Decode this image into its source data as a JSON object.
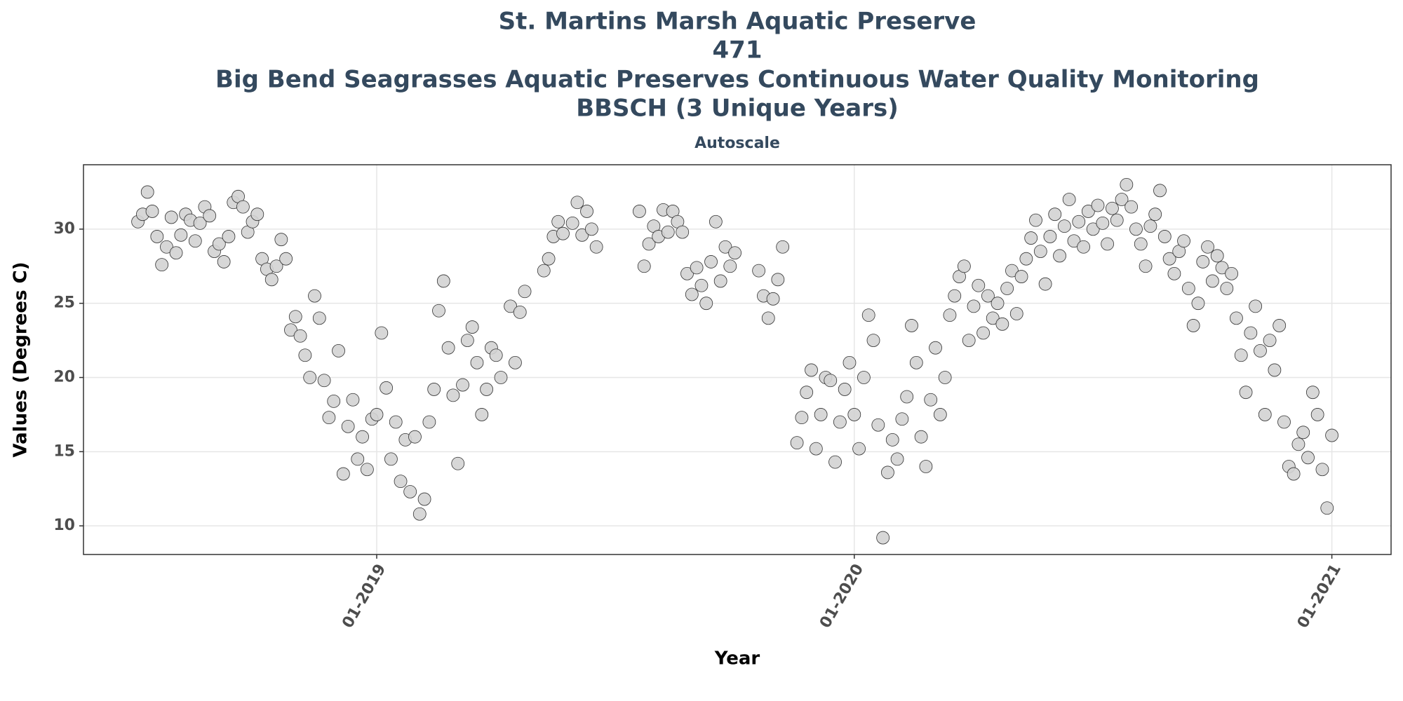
{
  "chart_data": {
    "type": "scatter",
    "title": [
      "St. Martins Marsh Aquatic Preserve",
      "471",
      "Big Bend Seagrasses Aquatic Preserves Continuous Water Quality Monitoring",
      "BBSCH (3 Unique Years)"
    ],
    "subtitle": "Autoscale",
    "xlabel": "Year",
    "ylabel": "Values (Degrees C)",
    "xlim": [
      2018.386,
      2021.124
    ],
    "ylim": [
      8.07,
      34.34
    ],
    "xticks": [
      {
        "value": 2019,
        "label": "01-2019"
      },
      {
        "value": 2020,
        "label": "01-2020"
      },
      {
        "value": 2021,
        "label": "01-2021"
      }
    ],
    "yticks": [
      10,
      15,
      20,
      25,
      30
    ],
    "grid": true,
    "series": [
      {
        "color": "#d3d3d3",
        "x": [
          2018.5,
          2018.51,
          2018.52,
          2018.53,
          2018.54,
          2018.55,
          2018.56,
          2018.57,
          2018.58,
          2018.59,
          2018.6,
          2018.61,
          2018.62,
          2018.63,
          2018.64,
          2018.65,
          2018.66,
          2018.67,
          2018.68,
          2018.69,
          2018.7,
          2018.71,
          2018.72,
          2018.73,
          2018.74,
          2018.75,
          2018.76,
          2018.77,
          2018.78,
          2018.79,
          2018.8,
          2018.81,
          2018.82,
          2018.83,
          2018.84,
          2018.85,
          2018.86,
          2018.87,
          2018.88,
          2018.89,
          2018.9,
          2018.91,
          2018.92,
          2018.93,
          2018.94,
          2018.95,
          2018.96,
          2018.97,
          2018.98,
          2018.99,
          2019.0,
          2019.01,
          2019.02,
          2019.03,
          2019.04,
          2019.05,
          2019.06,
          2019.07,
          2019.08,
          2019.09,
          2019.1,
          2019.11,
          2019.12,
          2019.13,
          2019.14,
          2019.15,
          2019.16,
          2019.17,
          2019.18,
          2019.19,
          2019.2,
          2019.21,
          2019.22,
          2019.23,
          2019.24,
          2019.25,
          2019.26,
          2019.28,
          2019.29,
          2019.3,
          2019.31,
          2019.35,
          2019.36,
          2019.37,
          2019.38,
          2019.39,
          2019.41,
          2019.42,
          2019.43,
          2019.44,
          2019.45,
          2019.46,
          2019.55,
          2019.56,
          2019.57,
          2019.58,
          2019.59,
          2019.6,
          2019.61,
          2019.62,
          2019.63,
          2019.64,
          2019.65,
          2019.66,
          2019.67,
          2019.68,
          2019.69,
          2019.7,
          2019.71,
          2019.72,
          2019.73,
          2019.74,
          2019.75,
          2019.8,
          2019.81,
          2019.82,
          2019.83,
          2019.84,
          2019.85,
          2019.88,
          2019.89,
          2019.9,
          2019.91,
          2019.92,
          2019.93,
          2019.94,
          2019.95,
          2019.96,
          2019.97,
          2019.98,
          2019.99,
          2020.0,
          2020.01,
          2020.02,
          2020.03,
          2020.04,
          2020.05,
          2020.06,
          2020.07,
          2020.08,
          2020.09,
          2020.1,
          2020.11,
          2020.12,
          2020.13,
          2020.14,
          2020.15,
          2020.16,
          2020.17,
          2020.18,
          2020.19,
          2020.2,
          2020.21,
          2020.22,
          2020.23,
          2020.24,
          2020.25,
          2020.26,
          2020.27,
          2020.28,
          2020.29,
          2020.3,
          2020.31,
          2020.32,
          2020.33,
          2020.34,
          2020.35,
          2020.36,
          2020.37,
          2020.38,
          2020.39,
          2020.4,
          2020.41,
          2020.42,
          2020.43,
          2020.44,
          2020.45,
          2020.46,
          2020.47,
          2020.48,
          2020.49,
          2020.5,
          2020.51,
          2020.52,
          2020.53,
          2020.54,
          2020.55,
          2020.56,
          2020.57,
          2020.58,
          2020.59,
          2020.6,
          2020.61,
          2020.62,
          2020.63,
          2020.64,
          2020.65,
          2020.66,
          2020.67,
          2020.68,
          2020.69,
          2020.7,
          2020.71,
          2020.72,
          2020.73,
          2020.74,
          2020.75,
          2020.76,
          2020.77,
          2020.78,
          2020.79,
          2020.8,
          2020.81,
          2020.82,
          2020.83,
          2020.84,
          2020.85,
          2020.86,
          2020.87,
          2020.88,
          2020.89,
          2020.9,
          2020.91,
          2020.92,
          2020.93,
          2020.94,
          2020.95,
          2020.96,
          2020.97,
          2020.98,
          2020.99,
          2021.0
        ],
        "values": [
          30.5,
          31.0,
          32.5,
          31.2,
          29.5,
          27.6,
          28.8,
          30.8,
          28.4,
          29.6,
          31.0,
          30.6,
          29.2,
          30.4,
          31.5,
          30.9,
          28.5,
          29.0,
          27.8,
          29.5,
          31.8,
          32.2,
          31.5,
          29.8,
          30.5,
          31.0,
          28.0,
          27.3,
          26.6,
          27.5,
          29.3,
          28.0,
          23.2,
          24.1,
          22.8,
          21.5,
          20.0,
          25.5,
          24.0,
          19.8,
          17.3,
          18.4,
          21.8,
          13.5,
          16.7,
          18.5,
          14.5,
          16.0,
          13.8,
          17.2,
          17.5,
          23.0,
          19.3,
          14.5,
          17.0,
          13.0,
          15.8,
          12.3,
          16.0,
          10.8,
          11.8,
          17.0,
          19.2,
          24.5,
          26.5,
          22.0,
          18.8,
          14.2,
          19.5,
          22.5,
          23.4,
          21.0,
          17.5,
          19.2,
          22.0,
          21.5,
          20.0,
          24.8,
          21.0,
          24.4,
          25.8,
          27.2,
          28.0,
          29.5,
          30.5,
          29.7,
          30.4,
          31.8,
          29.6,
          31.2,
          30.0,
          28.8,
          31.2,
          27.5,
          29.0,
          30.2,
          29.5,
          31.3,
          29.8,
          31.2,
          30.5,
          29.8,
          27.0,
          25.6,
          27.4,
          26.2,
          25.0,
          27.8,
          30.5,
          26.5,
          28.8,
          27.5,
          28.4,
          27.2,
          25.5,
          24.0,
          25.3,
          26.6,
          28.8,
          15.6,
          17.3,
          19.0,
          20.5,
          15.2,
          17.5,
          20.0,
          19.8,
          14.3,
          17.0,
          19.2,
          21.0,
          17.5,
          15.2,
          20.0,
          24.2,
          22.5,
          16.8,
          9.2,
          13.6,
          15.8,
          14.5,
          17.2,
          18.7,
          23.5,
          21.0,
          16.0,
          14.0,
          18.5,
          22.0,
          17.5,
          20.0,
          24.2,
          25.5,
          26.8,
          27.5,
          22.5,
          24.8,
          26.2,
          23.0,
          25.5,
          24.0,
          25.0,
          23.6,
          26.0,
          27.2,
          24.3,
          26.8,
          28.0,
          29.4,
          30.6,
          28.5,
          26.3,
          29.5,
          31.0,
          28.2,
          30.2,
          32.0,
          29.2,
          30.5,
          28.8,
          31.2,
          30.0,
          31.6,
          30.4,
          29.0,
          31.4,
          30.6,
          32.0,
          33.0,
          31.5,
          30.0,
          29.0,
          27.5,
          30.2,
          31.0,
          32.6,
          29.5,
          28.0,
          27.0,
          28.5,
          29.2,
          26.0,
          23.5,
          25.0,
          27.8,
          28.8,
          26.5,
          28.2,
          27.4,
          26.0,
          27.0,
          24.0,
          21.5,
          19.0,
          23.0,
          24.8,
          21.8,
          17.5,
          22.5,
          20.5,
          23.5,
          17.0,
          14.0,
          13.5,
          15.5,
          16.3,
          14.6,
          19.0,
          17.5,
          13.8,
          11.2,
          16.1
        ]
      }
    ]
  }
}
